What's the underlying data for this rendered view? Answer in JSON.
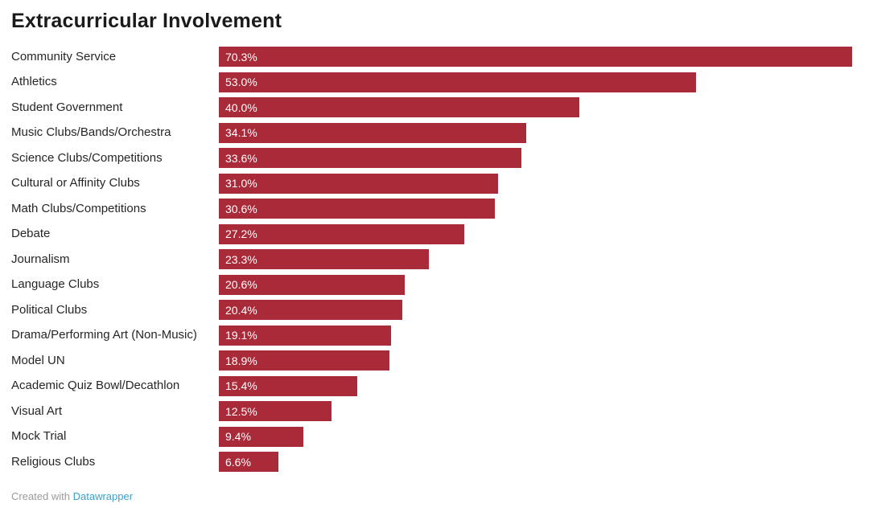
{
  "title": "Extracurricular Involvement",
  "chart_data": {
    "type": "bar",
    "orientation": "horizontal",
    "title": "Extracurricular Involvement",
    "categories": [
      "Community Service",
      "Athletics",
      "Student Government",
      "Music Clubs/Bands/Orchestra",
      "Science Clubs/Competitions",
      "Cultural or Affinity Clubs",
      "Math Clubs/Competitions",
      "Debate",
      "Journalism",
      "Language Clubs",
      "Political Clubs",
      "Drama/Performing Art (Non-Music)",
      "Model UN",
      "Academic Quiz Bowl/Decathlon",
      "Visual Art",
      "Mock Trial",
      "Religious Clubs"
    ],
    "values": [
      70.3,
      53.0,
      40.0,
      34.1,
      33.6,
      31.0,
      30.6,
      27.2,
      23.3,
      20.6,
      20.4,
      19.1,
      18.9,
      15.4,
      12.5,
      9.4,
      6.6
    ],
    "labels": [
      "70.3%",
      "53.0%",
      "40.0%",
      "34.1%",
      "33.6%",
      "31.0%",
      "30.6%",
      "27.2%",
      "23.3%",
      "20.6%",
      "20.4%",
      "19.1%",
      "18.9%",
      "15.4%",
      "12.5%",
      "9.4%",
      "6.6%"
    ],
    "value_suffix": "%",
    "xlim": [
      0,
      70.3
    ],
    "bar_color": "#a92a38",
    "value_label_color": "#ffffff",
    "grid": false,
    "legend": "none",
    "value_label_position": "inside-start"
  },
  "footer": {
    "created_with": "Created with",
    "link_label": "Datawrapper",
    "link_color": "#3aa2c9"
  }
}
